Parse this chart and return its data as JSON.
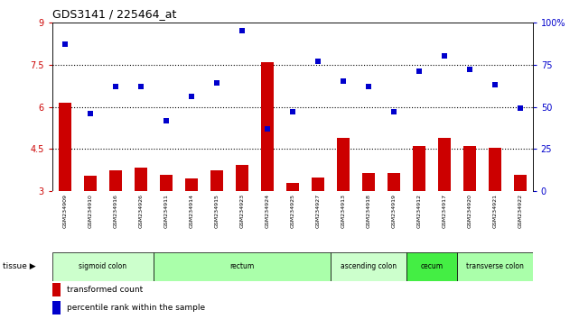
{
  "title": "GDS3141 / 225464_at",
  "samples": [
    "GSM234909",
    "GSM234910",
    "GSM234916",
    "GSM234926",
    "GSM234911",
    "GSM234914",
    "GSM234915",
    "GSM234923",
    "GSM234924",
    "GSM234925",
    "GSM234927",
    "GSM234913",
    "GSM234918",
    "GSM234919",
    "GSM234912",
    "GSM234917",
    "GSM234920",
    "GSM234921",
    "GSM234922"
  ],
  "transformed_count": [
    6.15,
    3.55,
    3.75,
    3.85,
    3.6,
    3.45,
    3.75,
    3.95,
    7.6,
    3.3,
    3.5,
    4.9,
    3.65,
    3.65,
    4.6,
    4.9,
    4.6,
    4.55,
    3.6
  ],
  "percentile_rank": [
    87,
    46,
    62,
    62,
    42,
    56,
    64,
    95,
    37,
    47,
    77,
    65,
    62,
    47,
    71,
    80,
    72,
    63,
    49
  ],
  "tissues": [
    "sigmoid colon",
    "rectum",
    "ascending colon",
    "cecum",
    "transverse colon"
  ],
  "tissue_ranges": [
    [
      0,
      3
    ],
    [
      4,
      10
    ],
    [
      11,
      13
    ],
    [
      14,
      15
    ],
    [
      16,
      18
    ]
  ],
  "tissue_colors": [
    "#ccffcc",
    "#aaffaa",
    "#ccffcc",
    "#44ee44",
    "#aaffaa"
  ],
  "bar_color": "#cc0000",
  "dot_color": "#0000cc",
  "ylim_left": [
    3.0,
    9.0
  ],
  "yticks_left": [
    3.0,
    4.5,
    6.0,
    7.5,
    9.0
  ],
  "ytick_labels_left": [
    "3",
    "4.5",
    "6",
    "7.5",
    "9"
  ],
  "yticks_right": [
    0,
    25,
    50,
    75,
    100
  ],
  "ytick_labels_right": [
    "0",
    "25",
    "50",
    "75",
    "100%"
  ],
  "hlines": [
    4.5,
    6.0,
    7.5
  ],
  "bg_color": "#ffffff",
  "sample_bg_color": "#c8c8c8",
  "bar_width": 0.5
}
